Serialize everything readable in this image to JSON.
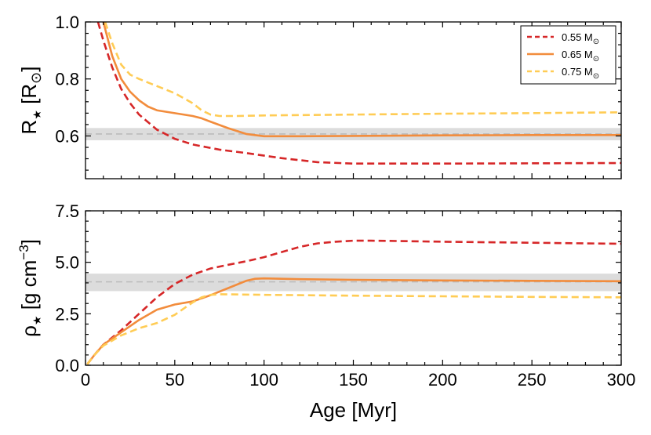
{
  "chart_data": [
    {
      "type": "line",
      "panel": "top",
      "ylabel_main": "R",
      "ylabel_sub": "★",
      "ylabel_unit_open": " [R",
      "ylabel_unit_sub": "⊙",
      "ylabel_unit_close": "]",
      "xlim": [
        0,
        300
      ],
      "ylim": [
        0.45,
        1.0
      ],
      "yticks": [
        0.6,
        0.8,
        1.0
      ],
      "ytick_labels": [
        "0.6",
        "0.8",
        "1.0"
      ],
      "xticks": [
        0,
        50,
        100,
        150,
        200,
        250,
        300
      ],
      "xtick_labels": [
        "",
        "",
        "",
        "",
        "",
        "",
        ""
      ],
      "reference": {
        "value": 0.607,
        "band": [
          0.585,
          0.628
        ],
        "color": "#d3d3d3"
      },
      "series": [
        {
          "name": "0.55",
          "color": "#d62728",
          "dash": "dashed",
          "x": [
            7,
            10,
            15,
            20,
            25,
            30,
            40,
            50,
            60,
            75,
            90,
            110,
            130,
            150,
            200,
            250,
            300
          ],
          "y": [
            1.0,
            0.935,
            0.84,
            0.765,
            0.715,
            0.675,
            0.622,
            0.59,
            0.57,
            0.552,
            0.54,
            0.522,
            0.508,
            0.503,
            0.503,
            0.504,
            0.505
          ]
        },
        {
          "name": "0.65",
          "color": "#f28c3c",
          "dash": "solid",
          "x": [
            10,
            15,
            20,
            25,
            30,
            35,
            40,
            50,
            60,
            65,
            70,
            80,
            90,
            100,
            120,
            150,
            200,
            250,
            300
          ],
          "y": [
            1.0,
            0.88,
            0.8,
            0.755,
            0.725,
            0.703,
            0.69,
            0.68,
            0.67,
            0.662,
            0.65,
            0.627,
            0.607,
            0.599,
            0.599,
            0.6,
            0.602,
            0.603,
            0.603
          ]
        },
        {
          "name": "0.75",
          "color": "#ffcc55",
          "dash": "dashed",
          "x": [
            11,
            15,
            20,
            25,
            30,
            40,
            50,
            60,
            65,
            70,
            75,
            85,
            100,
            150,
            200,
            250,
            300
          ],
          "y": [
            1.0,
            0.925,
            0.85,
            0.815,
            0.8,
            0.775,
            0.75,
            0.715,
            0.69,
            0.675,
            0.67,
            0.67,
            0.672,
            0.675,
            0.678,
            0.68,
            0.683
          ]
        }
      ],
      "legend": {
        "placement": "top-right",
        "entries": [
          {
            "series": "0.55",
            "label": "0.55 M",
            "sub": "⊙"
          },
          {
            "series": "0.65",
            "label": "0.65 M",
            "sub": "⊙"
          },
          {
            "series": "0.75",
            "label": "0.75 M",
            "sub": "⊙"
          }
        ]
      }
    },
    {
      "type": "line",
      "panel": "bottom",
      "ylabel_main": "ρ",
      "ylabel_sub": "★",
      "ylabel_unit_open": " [g cm",
      "ylabel_unit_sup": "−3",
      "ylabel_unit_close": "]",
      "xlabel": "Age [Myr]",
      "xlim": [
        0,
        300
      ],
      "ylim": [
        0.0,
        7.5
      ],
      "yticks": [
        0.0,
        2.5,
        5.0,
        7.5
      ],
      "ytick_labels": [
        "0.0",
        "2.5",
        "5.0",
        "7.5"
      ],
      "xticks": [
        0,
        50,
        100,
        150,
        200,
        250,
        300
      ],
      "xtick_labels": [
        "0",
        "50",
        "100",
        "150",
        "200",
        "250",
        "300"
      ],
      "reference": {
        "value": 4.05,
        "band": [
          3.6,
          4.45
        ],
        "color": "#d3d3d3"
      },
      "series": [
        {
          "name": "0.55",
          "color": "#d62728",
          "dash": "dashed",
          "x": [
            1,
            5,
            10,
            20,
            30,
            40,
            50,
            60,
            70,
            80,
            90,
            100,
            110,
            120,
            130,
            140,
            150,
            160,
            170,
            200,
            250,
            300
          ],
          "y": [
            0.05,
            0.5,
            1.0,
            1.7,
            2.5,
            3.3,
            3.95,
            4.4,
            4.7,
            4.88,
            5.05,
            5.25,
            5.5,
            5.75,
            5.92,
            6.0,
            6.05,
            6.05,
            6.04,
            6.0,
            5.95,
            5.9
          ]
        },
        {
          "name": "0.65",
          "color": "#f28c3c",
          "dash": "solid",
          "x": [
            1,
            5,
            10,
            20,
            30,
            40,
            50,
            60,
            70,
            80,
            90,
            95,
            100,
            110,
            120,
            150,
            200,
            250,
            300
          ],
          "y": [
            0.05,
            0.5,
            1.0,
            1.6,
            2.2,
            2.7,
            2.95,
            3.1,
            3.4,
            3.75,
            4.1,
            4.2,
            4.22,
            4.2,
            4.18,
            4.15,
            4.12,
            4.1,
            4.08
          ]
        },
        {
          "name": "0.75",
          "color": "#ffcc55",
          "dash": "dashed",
          "x": [
            1,
            5,
            10,
            20,
            30,
            40,
            50,
            60,
            65,
            70,
            75,
            100,
            150,
            200,
            250,
            300
          ],
          "y": [
            0.05,
            0.5,
            0.95,
            1.45,
            1.8,
            2.05,
            2.45,
            3.05,
            3.3,
            3.42,
            3.45,
            3.42,
            3.38,
            3.35,
            3.32,
            3.3
          ]
        }
      ]
    }
  ]
}
